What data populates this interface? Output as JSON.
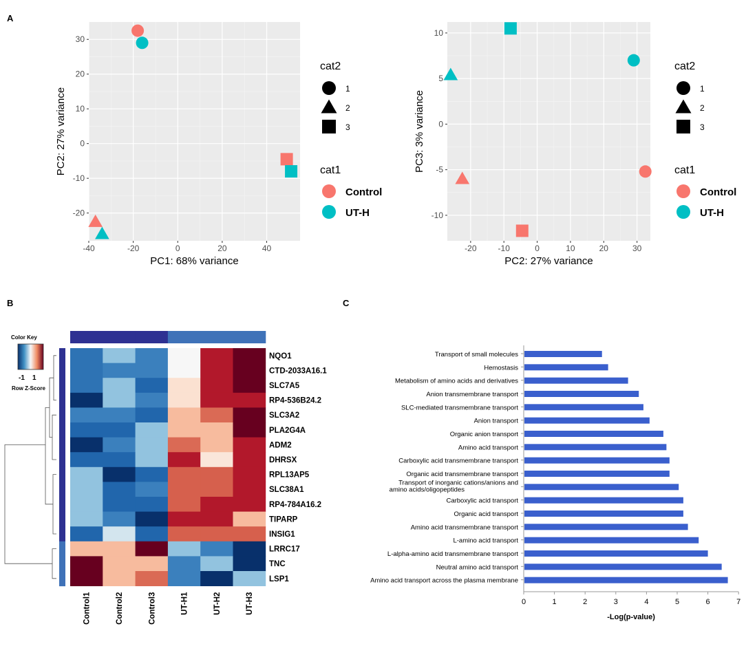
{
  "panel_labels": {
    "a": "A",
    "b": "B",
    "c": "C"
  },
  "colors": {
    "control": "#F8766D",
    "uth": "#00BFC4",
    "bar": "#3A5FCD",
    "plot_bg": "#EBEBEB",
    "grid": "#FFFFFF"
  },
  "legend": {
    "shape_title": "cat2",
    "shapes": [
      "1",
      "2",
      "3"
    ],
    "group_title": "cat1",
    "groups": [
      "Control",
      "UT-H"
    ]
  },
  "heatmap_key": {
    "title": "Color Key",
    "ticks": [
      "-1",
      "1"
    ],
    "label": "Row Z-Score"
  },
  "chart_data": [
    {
      "id": "pca_pc1_pc2",
      "type": "scatter",
      "title": "",
      "xlabel": "PC1: 68% variance",
      "ylabel": "PC2: 27% variance",
      "xlim": [
        -40,
        55
      ],
      "ylim": [
        -28,
        35
      ],
      "xticks": [
        -40,
        -20,
        0,
        20,
        40
      ],
      "yticks": [
        -20,
        -10,
        0,
        10,
        20,
        30
      ],
      "points": [
        {
          "x": -18,
          "y": 32.5,
          "group": "Control",
          "shape": "1"
        },
        {
          "x": -16,
          "y": 29,
          "group": "UT-H",
          "shape": "1"
        },
        {
          "x": -37,
          "y": -22.5,
          "group": "Control",
          "shape": "2"
        },
        {
          "x": -34,
          "y": -26,
          "group": "UT-H",
          "shape": "2"
        },
        {
          "x": 49,
          "y": -4.5,
          "group": "Control",
          "shape": "3"
        },
        {
          "x": 51,
          "y": -8,
          "group": "UT-H",
          "shape": "3"
        }
      ]
    },
    {
      "id": "pca_pc2_pc3",
      "type": "scatter",
      "title": "",
      "xlabel": "PC2: 27% variance",
      "ylabel": "PC3: 3% variance",
      "xlim": [
        -27,
        34
      ],
      "ylim": [
        -12.8,
        11.2
      ],
      "xticks": [
        -20,
        -10,
        0,
        10,
        20,
        30
      ],
      "yticks": [
        -10,
        -5,
        0,
        5,
        10
      ],
      "points": [
        {
          "x": 32.5,
          "y": -5.2,
          "group": "Control",
          "shape": "1"
        },
        {
          "x": 29,
          "y": 7,
          "group": "UT-H",
          "shape": "1"
        },
        {
          "x": -22.5,
          "y": -6,
          "group": "Control",
          "shape": "2"
        },
        {
          "x": -26,
          "y": 5.4,
          "group": "UT-H",
          "shape": "2"
        },
        {
          "x": -4.5,
          "y": -11.7,
          "group": "Control",
          "shape": "3"
        },
        {
          "x": -8,
          "y": 10.5,
          "group": "UT-H",
          "shape": "3"
        }
      ]
    },
    {
      "id": "heatmap",
      "type": "heatmap",
      "title": "",
      "columns": [
        "Control1",
        "Control2",
        "Control3",
        "UT-H1",
        "UT-H2",
        "UT-H3"
      ],
      "column_groups": [
        "Control",
        "Control",
        "Control",
        "UT-H",
        "UT-H",
        "UT-H"
      ],
      "rows": [
        "NQO1",
        "CTD-2033A16.1",
        "SLC7A5",
        "RP4-536B24.2",
        "SLC3A2",
        "PLA2G4A",
        "ADM2",
        "DHRSX",
        "RPL13AP5",
        "SLC38A1",
        "RP4-784A16.2",
        "TIPARP",
        "INSIG1",
        "LRRC17",
        "TNC",
        "LSP1"
      ],
      "row_clusters": [
        1,
        1,
        1,
        1,
        1,
        1,
        1,
        1,
        1,
        1,
        1,
        1,
        1,
        2,
        2,
        2
      ],
      "values": [
        [
          -0.9,
          -0.3,
          -0.8,
          0.0,
          1.0,
          1.5
        ],
        [
          -0.9,
          -0.8,
          -0.8,
          0.0,
          1.0,
          1.5
        ],
        [
          -0.9,
          -0.3,
          -1.0,
          0.2,
          1.0,
          1.5
        ],
        [
          -1.5,
          -0.3,
          -0.8,
          0.2,
          1.0,
          1.0
        ],
        [
          -0.8,
          -0.8,
          -1.0,
          0.4,
          0.8,
          1.5
        ],
        [
          -1.0,
          -1.0,
          -0.3,
          0.4,
          0.4,
          1.5
        ],
        [
          -1.5,
          -0.8,
          -0.3,
          0.8,
          0.4,
          1.0
        ],
        [
          -1.0,
          -1.0,
          -0.3,
          1.0,
          0.15,
          1.0
        ],
        [
          -0.3,
          -1.5,
          -1.0,
          0.85,
          0.85,
          1.0
        ],
        [
          -0.3,
          -1.0,
          -0.8,
          0.85,
          0.85,
          1.0
        ],
        [
          -0.3,
          -1.0,
          -1.0,
          0.85,
          1.0,
          1.0
        ],
        [
          -0.3,
          -0.8,
          -1.5,
          1.0,
          1.0,
          0.4
        ],
        [
          -1.0,
          -0.1,
          -1.0,
          0.85,
          0.85,
          0.85
        ],
        [
          0.4,
          0.4,
          1.5,
          -0.3,
          -0.8,
          -1.5
        ],
        [
          1.5,
          0.4,
          0.4,
          -0.8,
          -0.3,
          -1.5
        ],
        [
          1.5,
          0.4,
          0.8,
          -0.8,
          -1.5,
          -0.3
        ]
      ]
    },
    {
      "id": "pathway_bars",
      "type": "bar",
      "orientation": "horizontal",
      "title": "",
      "xlabel": "-Log(p-value)",
      "ylabel": "",
      "xlim": [
        0,
        7
      ],
      "xticks": [
        0,
        1,
        2,
        3,
        4,
        5,
        6,
        7
      ],
      "categories": [
        "Transport of small molecules",
        "Hemostasis",
        "Metabolism of amino acids and derivatives",
        "Anion transmembrane transport",
        "SLC-mediated transmembrane transport",
        "Anion transport",
        "Organic anion transport",
        "Amino acid transport",
        "Carboxylic acid transmembrane transport",
        "Organic acid transmembrane transport",
        "Transport of inorganic cations/anions and amino acids/oligopeptides",
        "Carboxylic acid transport",
        "Organic acid transport",
        "Amino acid transmembrane transport",
        "L-amino acid transport",
        "L-alpha-amino acid transmembrane transport",
        "Neutral amino acid transport",
        "Amino acid transport across the plasma membrane"
      ],
      "values": [
        2.55,
        2.75,
        3.4,
        3.75,
        3.9,
        4.1,
        4.55,
        4.65,
        4.75,
        4.75,
        5.05,
        5.2,
        5.2,
        5.35,
        5.7,
        6.0,
        6.45,
        6.65
      ]
    }
  ]
}
